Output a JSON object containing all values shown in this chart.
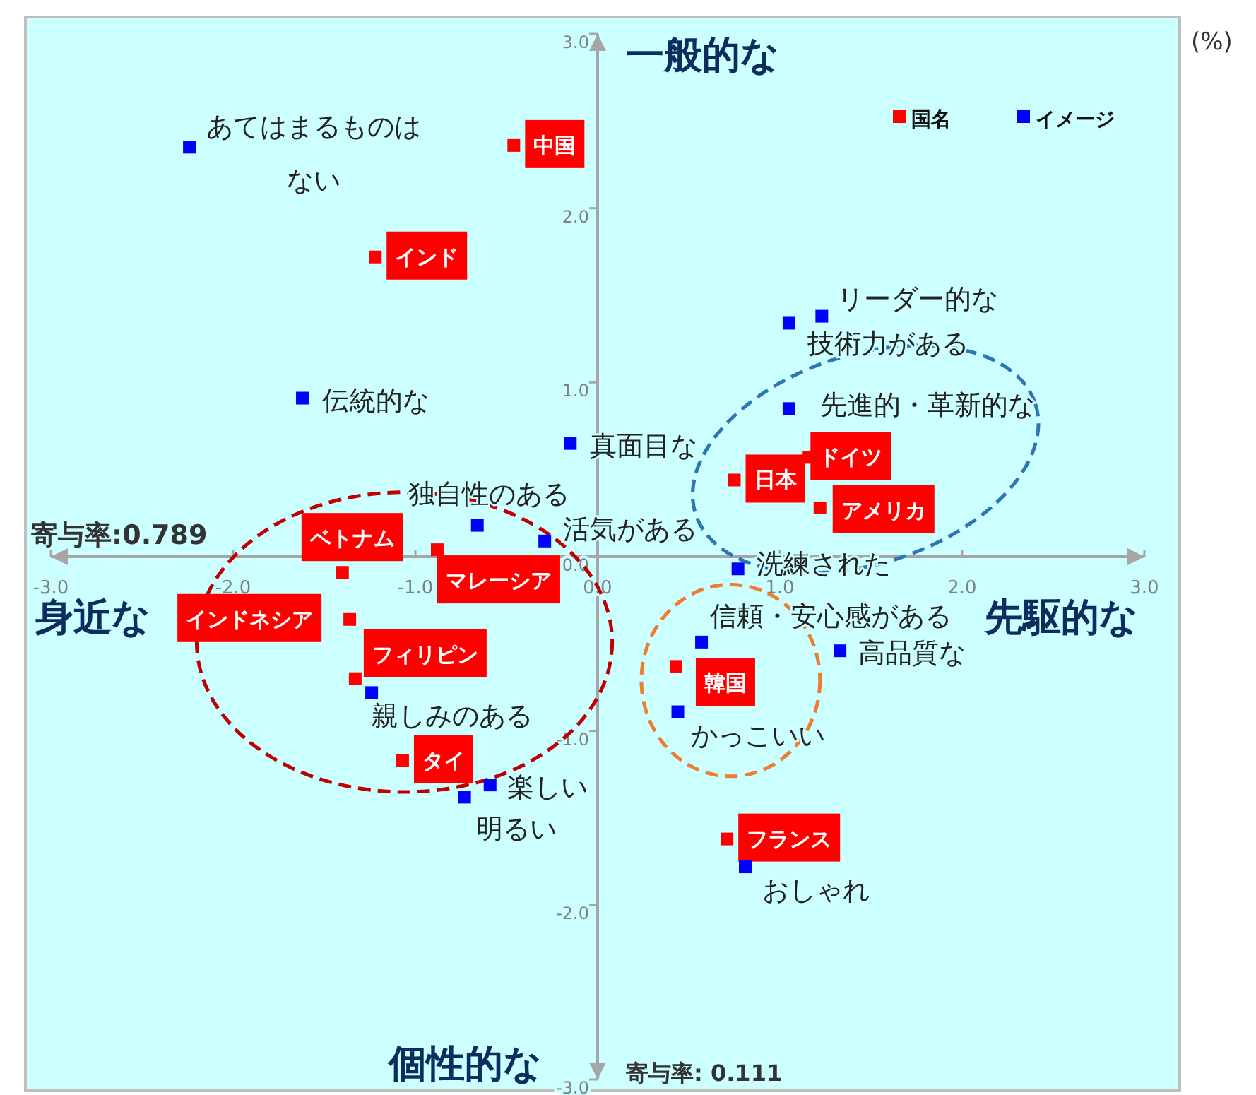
{
  "chart_data": {
    "type": "scatter",
    "marker": "square",
    "legend": "top right",
    "grid": false,
    "xlim": [
      -3,
      3
    ],
    "ylim": [
      -3,
      3
    ],
    "xticks": [
      {
        "value": -3,
        "label": "-3.0"
      },
      {
        "value": -2,
        "label": "-2.0"
      },
      {
        "value": -1,
        "label": "-1.0"
      },
      {
        "value": 0,
        "label": "0.0"
      },
      {
        "value": 1,
        "label": "1.0"
      },
      {
        "value": 2,
        "label": "2.0"
      },
      {
        "value": 3,
        "label": "3.0"
      }
    ],
    "yticks": [
      {
        "value": -3,
        "label": "-3.0"
      },
      {
        "value": -2,
        "label": "-2.0"
      },
      {
        "value": -1,
        "label": "-1.0"
      },
      {
        "value": 0,
        "label": "0.0"
      },
      {
        "value": 1,
        "label": "1.0"
      },
      {
        "value": 2,
        "label": "2.0"
      },
      {
        "value": 3,
        "label": "3.0"
      }
    ],
    "series": [
      {
        "name": "国名",
        "color": "#ff0000",
        "x": [
          -0.46,
          -1.22,
          -1.4,
          -0.88,
          -1.36,
          -1.33,
          -1.07,
          0.75,
          1.16,
          1.22,
          0.43,
          0.71
        ],
        "values": [
          2.36,
          1.72,
          -0.09,
          0.04,
          -0.36,
          -0.7,
          -1.17,
          0.44,
          0.57,
          0.28,
          -0.63,
          -1.62
        ],
        "value_labels": [
          "中国",
          "インド",
          "ベトナム",
          "マレーシア",
          "インドネシア",
          "フィリピン",
          "タイ",
          "日本",
          "ドイツ",
          "アメリカ",
          "韓国",
          "フランス"
        ]
      },
      {
        "name": "イメージ",
        "color": "#0000ff",
        "x": [
          -2.24,
          -1.62,
          -0.15,
          -0.66,
          -0.29,
          -1.24,
          -0.59,
          -0.73,
          1.23,
          1.05,
          1.05,
          0.77,
          0.57,
          1.33,
          0.44,
          0.81
        ],
        "values": [
          2.35,
          0.91,
          0.65,
          0.18,
          0.09,
          -0.78,
          -1.31,
          -1.38,
          1.38,
          1.34,
          0.85,
          -0.07,
          -0.49,
          -0.54,
          -0.89,
          -1.78
        ],
        "value_labels": [
          "あてはまるものはない",
          "伝統的な",
          "真面目な",
          "独自性のある",
          "活気がある",
          "親しみのある",
          "楽しい",
          "明るい",
          "リーダー的な",
          "技術力がある",
          "先進的・革新的な",
          "洗練された",
          "信頼・安心感がある",
          "高品質な",
          "かっこいい",
          "おしゃれ"
        ]
      }
    ],
    "annotations": [
      "一般的な",
      "先駆的な",
      "身近な",
      "個性的な",
      "寄与率:0.789",
      "寄与率: 0.111",
      "(%)"
    ]
  }
}
